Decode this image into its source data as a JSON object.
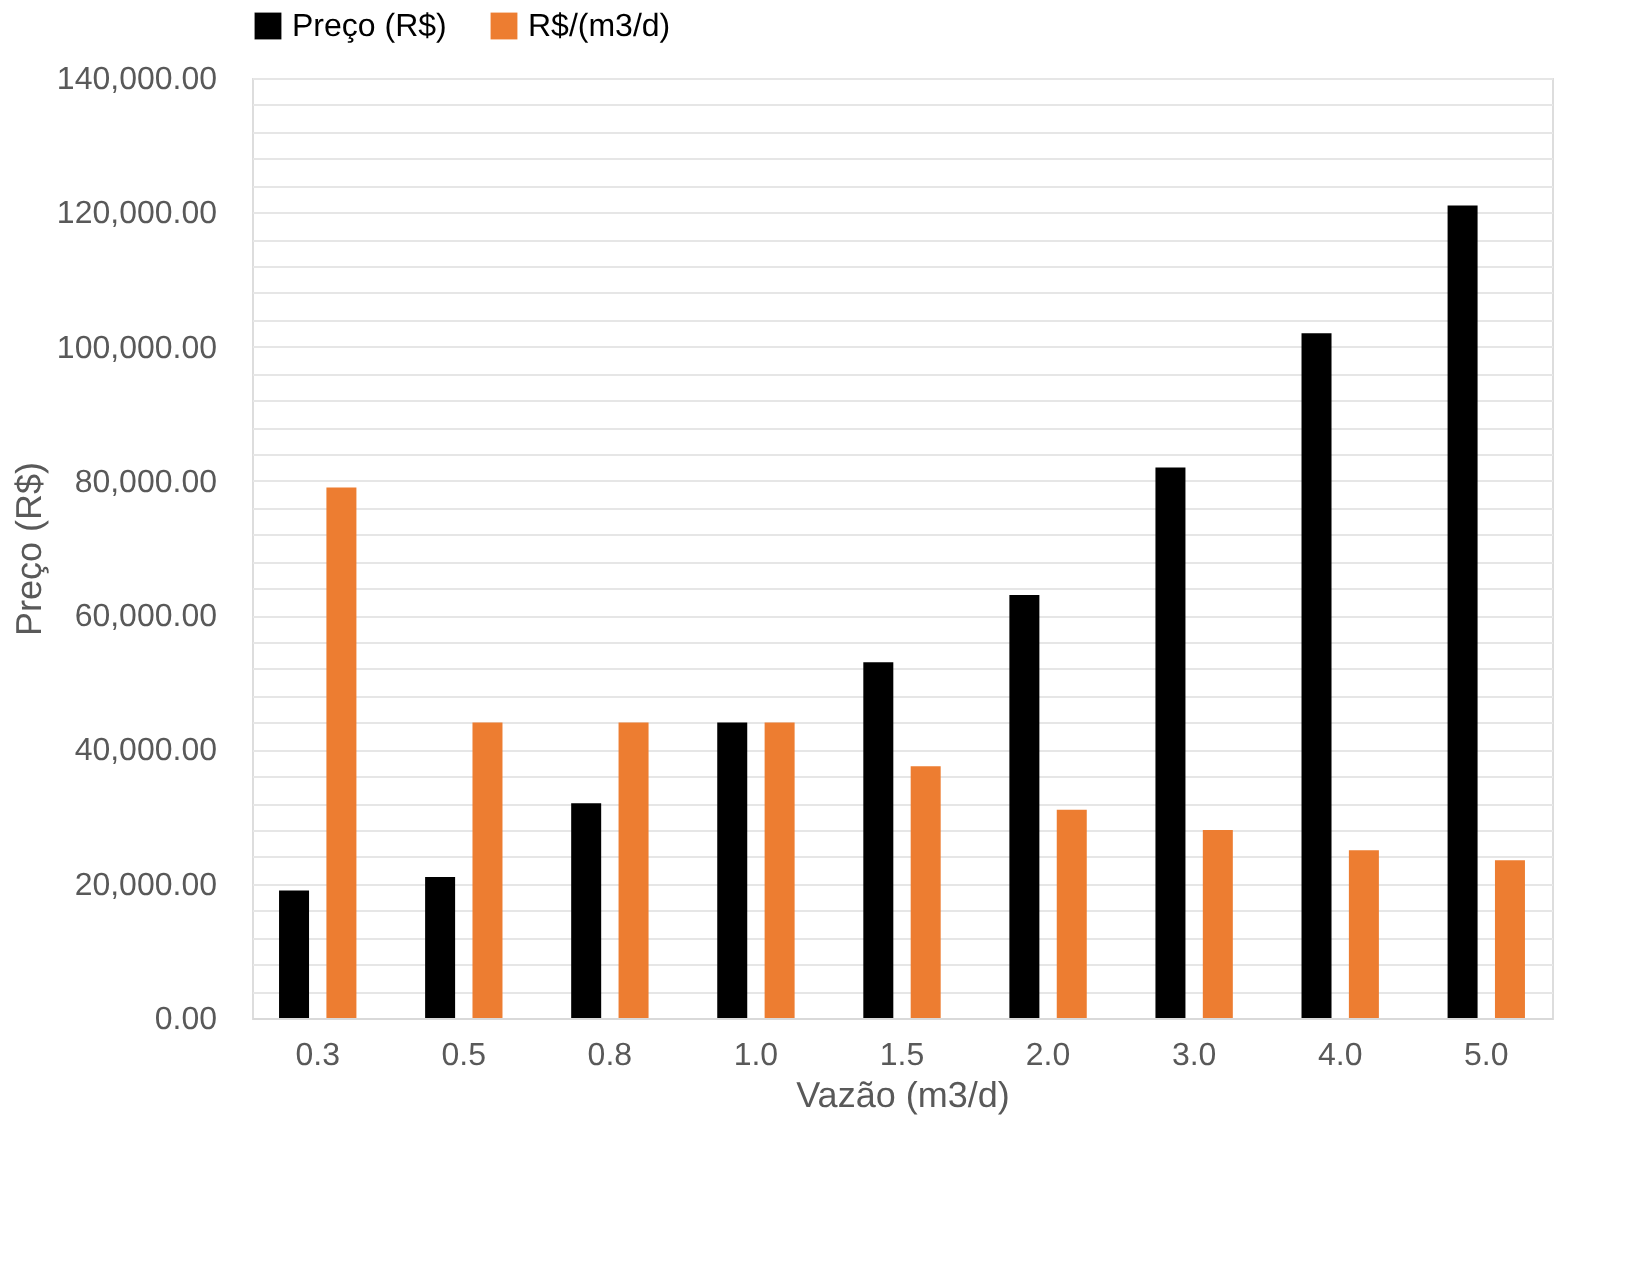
{
  "chart_data": {
    "type": "bar",
    "xlabel": "Vazão (m3/d)",
    "ylabel": "Preço (R$)",
    "categories": [
      "0.3",
      "0.5",
      "0.8",
      "1.0",
      "1.5",
      "2.0",
      "3.0",
      "4.0",
      "5.0"
    ],
    "series": [
      {
        "name": "Preço (R$)",
        "color": "#000000",
        "values": [
          19000,
          21000,
          32000,
          44000,
          53000,
          63000,
          82000,
          102000,
          121000
        ]
      },
      {
        "name": "R$/(m3/d)",
        "color": "#ed7d31",
        "values": [
          79000,
          44000,
          44000,
          44000,
          37500,
          31000,
          28000,
          25000,
          23500
        ]
      }
    ],
    "ylim": [
      0,
      140000
    ],
    "yticks": [
      {
        "value": 0,
        "label": "0.00"
      },
      {
        "value": 4000,
        "label": null
      },
      {
        "value": 8000,
        "label": null
      },
      {
        "value": 12000,
        "label": null
      },
      {
        "value": 16000,
        "label": null
      },
      {
        "value": 20000,
        "label": "20,000.00"
      },
      {
        "value": 24000,
        "label": null
      },
      {
        "value": 28000,
        "label": null
      },
      {
        "value": 32000,
        "label": null
      },
      {
        "value": 36000,
        "label": null
      },
      {
        "value": 40000,
        "label": "40,000.00"
      },
      {
        "value": 44000,
        "label": null
      },
      {
        "value": 48000,
        "label": null
      },
      {
        "value": 52000,
        "label": null
      },
      {
        "value": 56000,
        "label": null
      },
      {
        "value": 60000,
        "label": "60,000.00"
      },
      {
        "value": 64000,
        "label": null
      },
      {
        "value": 68000,
        "label": null
      },
      {
        "value": 72000,
        "label": null
      },
      {
        "value": 76000,
        "label": null
      },
      {
        "value": 80000,
        "label": "80,000.00"
      },
      {
        "value": 84000,
        "label": null
      },
      {
        "value": 88000,
        "label": null
      },
      {
        "value": 92000,
        "label": null
      },
      {
        "value": 96000,
        "label": null
      },
      {
        "value": 100000,
        "label": "100,000.00"
      },
      {
        "value": 104000,
        "label": null
      },
      {
        "value": 108000,
        "label": null
      },
      {
        "value": 112000,
        "label": null
      },
      {
        "value": 116000,
        "label": null
      },
      {
        "value": 120000,
        "label": "120,000.00"
      },
      {
        "value": 124000,
        "label": null
      },
      {
        "value": 128000,
        "label": null
      },
      {
        "value": 132000,
        "label": null
      },
      {
        "value": 136000,
        "label": null
      },
      {
        "value": 140000,
        "label": "140,000.00"
      }
    ],
    "grid": true,
    "legend": "top"
  }
}
